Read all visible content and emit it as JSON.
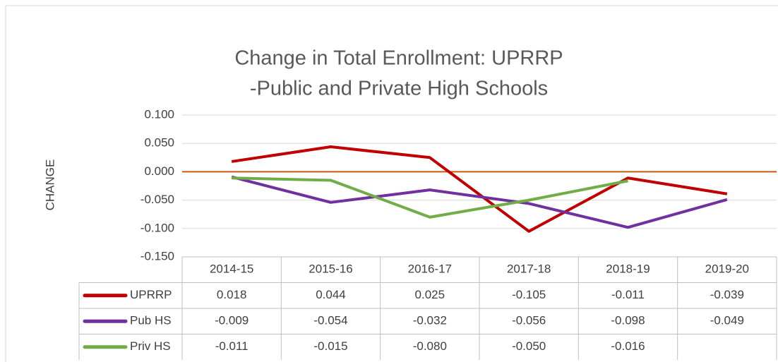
{
  "chart_data": {
    "type": "line",
    "title": [
      "Change in Total Enrollment:  UPRRP",
      "-Public and Private High Schools"
    ],
    "y_label": "CHANGE",
    "categories": [
      "2014-15",
      "2015-16",
      "2016-17",
      "2017-18",
      "2018-19",
      "2019-20"
    ],
    "series": [
      {
        "name": "UPRRP",
        "color": "#c00000",
        "values": [
          0.018,
          0.044,
          0.025,
          -0.105,
          -0.011,
          -0.039
        ],
        "value_labels": [
          "0.018",
          "0.044",
          "0.025",
          "-0.105",
          "-0.011",
          "-0.039"
        ]
      },
      {
        "name": "Pub HS",
        "color": "#7030a0",
        "values": [
          -0.009,
          -0.054,
          -0.032,
          -0.056,
          -0.098,
          -0.049
        ],
        "value_labels": [
          "-0.009",
          "-0.054",
          "-0.032",
          "-0.056",
          "-0.098",
          "-0.049"
        ]
      },
      {
        "name": "Priv HS",
        "color": "#70ad47",
        "values": [
          -0.011,
          -0.015,
          -0.08,
          -0.05,
          -0.016,
          null
        ],
        "value_labels": [
          "-0.011",
          "-0.015",
          "-0.080",
          "-0.050",
          "-0.016",
          null
        ]
      }
    ],
    "ylim": [
      -0.15,
      0.1
    ],
    "yticks": [
      {
        "value": 0.1,
        "label": "0.100"
      },
      {
        "value": 0.05,
        "label": "0.050"
      },
      {
        "value": 0,
        "label": "0.000"
      },
      {
        "value": -0.05,
        "label": "-0.050"
      },
      {
        "value": -0.1,
        "label": "-0.100"
      },
      {
        "value": -0.15,
        "label": "-0.150"
      }
    ],
    "grid": true,
    "zero_line_color": "#c55a11"
  }
}
